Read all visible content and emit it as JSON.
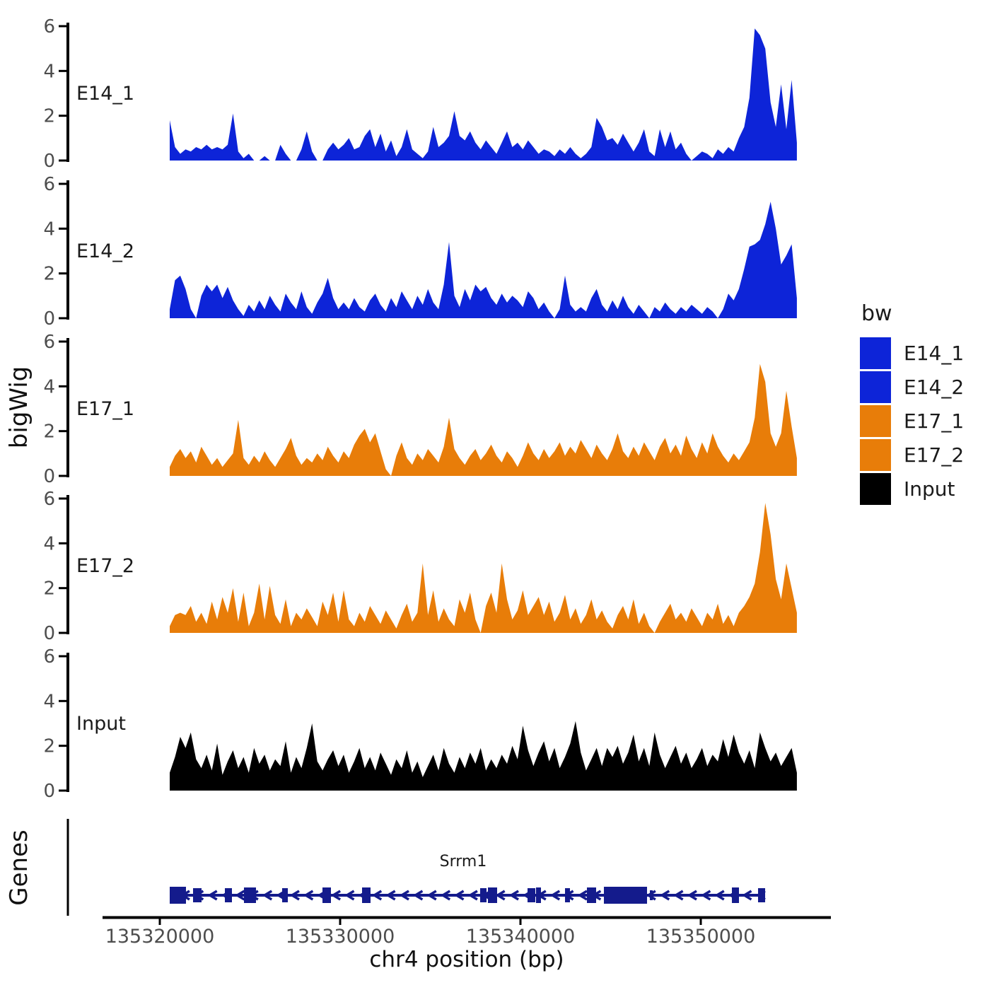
{
  "axes": {
    "y_title": "bigWig",
    "genes_title": "Genes",
    "x_title": "chr4 position (bp)",
    "y_ticks": [
      0,
      2,
      4,
      6
    ],
    "x_ticks": [
      {
        "bp": 135320000,
        "label": "135320000"
      },
      {
        "bp": 135330000,
        "label": "135330000"
      },
      {
        "bp": 135340000,
        "label": "135340000"
      },
      {
        "bp": 135350000,
        "label": "135350000"
      }
    ]
  },
  "colors": {
    "blue": "#0d24d8",
    "orange": "#e87d09",
    "input_black": "#000000",
    "gene": "#141b8c",
    "axis_line": "#000000",
    "tick_text": "#4d4d4d",
    "label_text": "#1a1a1a",
    "background": "#ffffff"
  },
  "legend": {
    "title": "bw",
    "items": [
      {
        "label": "E14_1",
        "color": "#0d24d8"
      },
      {
        "label": "E14_2",
        "color": "#0d24d8"
      },
      {
        "label": "E17_1",
        "color": "#e87d09"
      },
      {
        "label": "E17_2",
        "color": "#e87d09"
      },
      {
        "label": "Input",
        "color": "#000000"
      }
    ]
  },
  "chart_data": {
    "type": "area",
    "title": "",
    "xlabel": "chr4 position (bp)",
    "ylabel": "bigWig",
    "chrom": "chr4",
    "x_start_bp": 135320550,
    "x_end_bp": 135355330,
    "ylim": [
      0,
      6
    ],
    "grid": false,
    "legend_position": "right",
    "facets": "one track per row",
    "series": [
      {
        "name": "E14_1",
        "color": "#0d24d8",
        "values": [
          1.8,
          0.6,
          0.3,
          0.5,
          0.4,
          0.6,
          0.5,
          0.7,
          0.5,
          0.6,
          0.5,
          0.7,
          2.1,
          0.4,
          0.1,
          0.3,
          0.0,
          0.0,
          0.2,
          0.0,
          0.0,
          0.7,
          0.3,
          0.0,
          0.0,
          0.5,
          1.3,
          0.4,
          0.0,
          0.0,
          0.5,
          0.8,
          0.5,
          0.7,
          1.0,
          0.5,
          0.6,
          1.1,
          1.4,
          0.6,
          1.2,
          0.4,
          0.9,
          0.2,
          0.6,
          1.4,
          0.5,
          0.3,
          0.1,
          0.4,
          1.5,
          0.6,
          0.8,
          1.1,
          2.2,
          1.1,
          0.9,
          1.3,
          0.8,
          0.5,
          0.9,
          0.6,
          0.3,
          0.8,
          1.3,
          0.6,
          0.8,
          0.5,
          0.9,
          0.6,
          0.3,
          0.5,
          0.4,
          0.2,
          0.5,
          0.3,
          0.6,
          0.3,
          0.1,
          0.3,
          0.6,
          1.9,
          1.5,
          0.9,
          1.0,
          0.7,
          1.2,
          0.8,
          0.4,
          0.8,
          1.4,
          0.4,
          0.2,
          1.4,
          0.6,
          1.3,
          0.5,
          0.8,
          0.3,
          0.0,
          0.2,
          0.4,
          0.3,
          0.1,
          0.5,
          0.3,
          0.6,
          0.4,
          1.0,
          1.5,
          2.8,
          5.9,
          5.6,
          5.0,
          2.6,
          1.5,
          3.4,
          1.4,
          3.6,
          0.8
        ]
      },
      {
        "name": "E14_2",
        "color": "#0d24d8",
        "values": [
          0.4,
          1.7,
          1.9,
          1.3,
          0.4,
          0.0,
          1.0,
          1.5,
          1.2,
          1.5,
          0.9,
          1.4,
          0.8,
          0.4,
          0.1,
          0.6,
          0.3,
          0.8,
          0.4,
          1.0,
          0.6,
          0.3,
          1.1,
          0.7,
          0.4,
          1.2,
          0.5,
          0.2,
          0.7,
          1.1,
          1.8,
          0.9,
          0.4,
          0.7,
          0.4,
          0.9,
          0.5,
          0.3,
          0.8,
          1.1,
          0.6,
          0.3,
          0.9,
          0.5,
          1.2,
          0.8,
          0.4,
          1.0,
          0.6,
          1.3,
          0.7,
          0.4,
          1.5,
          3.4,
          1.0,
          0.5,
          1.3,
          0.8,
          1.5,
          1.2,
          1.4,
          0.9,
          0.6,
          1.1,
          0.7,
          1.0,
          0.8,
          0.5,
          1.2,
          0.9,
          0.4,
          0.7,
          0.3,
          0.0,
          0.4,
          1.9,
          0.6,
          0.3,
          0.5,
          0.3,
          0.9,
          1.3,
          0.6,
          0.3,
          0.8,
          0.4,
          1.0,
          0.5,
          0.2,
          0.6,
          0.3,
          0.0,
          0.5,
          0.3,
          0.7,
          0.4,
          0.2,
          0.5,
          0.3,
          0.6,
          0.4,
          0.2,
          0.5,
          0.3,
          0.0,
          0.4,
          1.1,
          0.8,
          1.3,
          2.2,
          3.2,
          3.3,
          3.5,
          4.2,
          5.2,
          4.0,
          2.4,
          2.8,
          3.3,
          0.9
        ]
      },
      {
        "name": "E17_1",
        "color": "#e87d09",
        "values": [
          0.4,
          0.9,
          1.2,
          0.8,
          1.1,
          0.6,
          1.3,
          0.9,
          0.5,
          0.8,
          0.4,
          0.7,
          1.0,
          2.5,
          0.8,
          0.5,
          0.9,
          0.6,
          1.1,
          0.7,
          0.4,
          0.8,
          1.2,
          1.7,
          0.9,
          0.5,
          0.8,
          0.6,
          1.0,
          0.7,
          1.3,
          0.9,
          0.6,
          1.1,
          0.8,
          1.4,
          1.8,
          2.1,
          1.5,
          1.9,
          1.1,
          0.3,
          0.0,
          0.9,
          1.5,
          0.8,
          0.5,
          1.0,
          0.7,
          1.2,
          0.9,
          0.6,
          1.3,
          2.6,
          1.2,
          0.8,
          0.5,
          0.9,
          1.2,
          0.7,
          1.0,
          1.4,
          0.9,
          0.6,
          1.1,
          0.8,
          0.4,
          0.9,
          1.5,
          1.0,
          0.7,
          1.2,
          0.8,
          1.1,
          1.5,
          0.9,
          1.3,
          1.0,
          1.6,
          1.2,
          0.8,
          1.4,
          1.0,
          0.7,
          1.2,
          1.9,
          1.1,
          0.8,
          1.3,
          0.9,
          1.5,
          1.1,
          0.7,
          1.3,
          1.7,
          1.0,
          1.4,
          0.9,
          1.8,
          1.2,
          0.8,
          1.5,
          1.0,
          1.9,
          1.3,
          0.9,
          0.6,
          1.0,
          0.7,
          1.1,
          1.5,
          2.6,
          5.0,
          4.2,
          1.9,
          1.3,
          1.9,
          3.8,
          2.2,
          0.8
        ]
      },
      {
        "name": "E17_2",
        "color": "#e87d09",
        "values": [
          0.3,
          0.8,
          0.9,
          0.8,
          1.2,
          0.5,
          0.9,
          0.4,
          1.4,
          0.6,
          1.6,
          0.9,
          2.0,
          0.5,
          1.8,
          0.3,
          0.9,
          2.2,
          0.6,
          2.1,
          0.8,
          0.4,
          1.5,
          0.3,
          0.9,
          0.6,
          1.1,
          0.7,
          0.3,
          1.4,
          0.8,
          1.8,
          0.5,
          1.9,
          0.6,
          0.3,
          0.9,
          0.5,
          1.2,
          0.8,
          0.4,
          1.0,
          0.6,
          0.2,
          0.8,
          1.3,
          0.5,
          0.9,
          3.1,
          0.8,
          1.9,
          0.5,
          1.1,
          0.6,
          0.3,
          1.5,
          0.9,
          1.8,
          0.6,
          0.0,
          1.2,
          1.8,
          0.9,
          3.1,
          1.5,
          0.6,
          1.0,
          1.9,
          0.8,
          1.2,
          1.6,
          0.8,
          1.4,
          0.5,
          0.9,
          1.7,
          0.6,
          1.1,
          0.4,
          0.8,
          1.5,
          0.6,
          1.0,
          0.5,
          0.2,
          0.8,
          1.2,
          0.6,
          1.5,
          0.4,
          0.9,
          0.3,
          0.0,
          0.5,
          0.9,
          1.3,
          0.6,
          0.9,
          0.5,
          1.1,
          0.7,
          0.3,
          0.9,
          0.6,
          1.3,
          0.4,
          0.8,
          0.3,
          0.9,
          1.2,
          1.6,
          2.2,
          3.6,
          5.8,
          4.4,
          2.4,
          1.5,
          3.1,
          2.0,
          0.9
        ]
      },
      {
        "name": "Input",
        "color": "#000000",
        "values": [
          0.8,
          1.5,
          2.4,
          1.9,
          2.6,
          1.4,
          1.0,
          1.6,
          0.9,
          2.1,
          0.7,
          1.3,
          1.8,
          1.0,
          1.5,
          0.8,
          1.9,
          1.2,
          1.6,
          0.9,
          1.4,
          1.1,
          2.2,
          0.8,
          1.5,
          1.0,
          1.9,
          3.0,
          1.3,
          0.9,
          1.4,
          1.8,
          1.1,
          1.6,
          0.8,
          1.3,
          1.9,
          1.0,
          1.5,
          0.9,
          1.7,
          1.2,
          0.7,
          1.4,
          1.0,
          1.8,
          0.8,
          1.3,
          0.6,
          1.1,
          1.6,
          0.9,
          1.9,
          1.2,
          0.8,
          1.5,
          1.0,
          1.7,
          1.2,
          1.9,
          0.9,
          1.4,
          1.0,
          1.6,
          1.2,
          2.0,
          1.4,
          2.9,
          1.8,
          1.1,
          1.7,
          2.2,
          1.3,
          1.9,
          1.0,
          1.5,
          2.1,
          3.1,
          1.7,
          0.9,
          1.4,
          1.9,
          1.1,
          1.9,
          1.5,
          2.0,
          1.2,
          1.7,
          2.5,
          1.3,
          1.9,
          1.1,
          2.6,
          1.6,
          1.0,
          1.5,
          2.0,
          1.2,
          1.7,
          1.0,
          1.4,
          1.9,
          1.1,
          1.6,
          1.3,
          2.3,
          1.5,
          2.5,
          1.7,
          1.2,
          1.8,
          1.0,
          2.6,
          1.9,
          1.3,
          1.7,
          1.1,
          1.5,
          1.9,
          0.8
        ]
      }
    ]
  },
  "gene": {
    "name": "Srrm1",
    "chrom": "chr4",
    "strand": "-",
    "start_bp": 135320549,
    "end_bp": 135353569,
    "arrow_spacing_bp": 760,
    "exons_bp": [
      [
        135320549,
        135321451,
        24
      ],
      [
        135321843,
        135322314,
        20
      ],
      [
        135323608,
        135324000,
        20
      ],
      [
        135324667,
        135325333,
        22
      ],
      [
        135326784,
        135327098,
        20
      ],
      [
        135329020,
        135329490,
        22
      ],
      [
        135331216,
        135331686,
        22
      ],
      [
        135337765,
        135338118,
        20
      ],
      [
        135338196,
        135338706,
        22
      ],
      [
        135340392,
        135340824,
        20
      ],
      [
        135340863,
        135341137,
        22
      ],
      [
        135342471,
        135342745,
        20
      ],
      [
        135343686,
        135344196,
        22
      ],
      [
        135344627,
        135347020,
        24
      ],
      [
        135347176,
        135347333,
        14
      ],
      [
        135351726,
        135352118,
        22
      ],
      [
        135353176,
        135353569,
        20
      ]
    ]
  }
}
